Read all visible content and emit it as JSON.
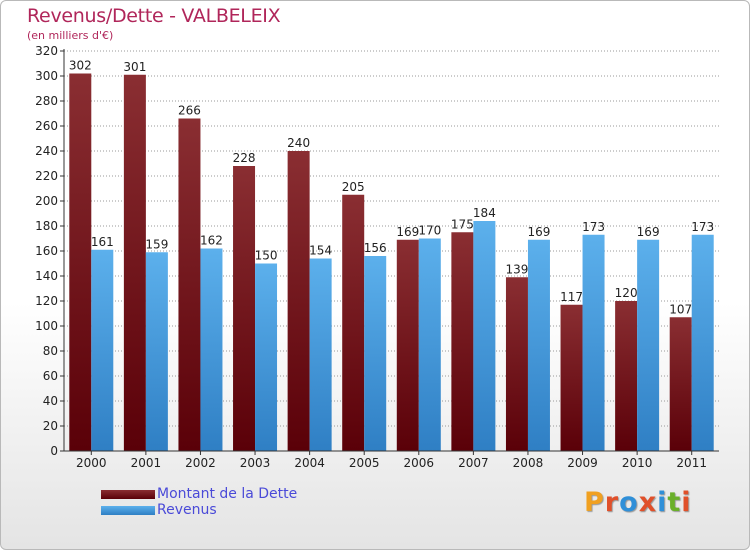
{
  "header": {
    "title": "Revenus/Dette - VALBELEIX",
    "subtitle": "(en milliers d'€)"
  },
  "legend": {
    "items": [
      {
        "label": "Montant de la Dette",
        "color": "#6b0f14"
      },
      {
        "label": "Revenus",
        "color": "#4aa3e6"
      }
    ]
  },
  "brand": {
    "text": "Proxiti",
    "letter_colors": [
      "#f0a020",
      "#e0502a",
      "#2f8fd8",
      "#e0502a",
      "#2f8fd8",
      "#6ab02a",
      "#e0502a"
    ]
  },
  "colors": {
    "dette_top": "#8a2e32",
    "dette_bottom": "#5a0008",
    "revenus_top": "#5cb0ec",
    "revenus_bottom": "#2f7fc4",
    "axis": "#333333",
    "grid": "#999999"
  },
  "chart_data": {
    "type": "bar",
    "title": "Revenus/Dette - VALBELEIX",
    "subtitle": "(en milliers d'€)",
    "categories": [
      "2000",
      "2001",
      "2002",
      "2003",
      "2004",
      "2005",
      "2006",
      "2007",
      "2008",
      "2009",
      "2010",
      "2011"
    ],
    "series": [
      {
        "name": "Montant de la Dette",
        "values": [
          302,
          301,
          266,
          228,
          240,
          205,
          169,
          175,
          139,
          117,
          120,
          107
        ]
      },
      {
        "name": "Revenus",
        "values": [
          161,
          159,
          162,
          150,
          154,
          156,
          170,
          184,
          169,
          173,
          169,
          173
        ]
      }
    ],
    "ylim": [
      0,
      320
    ],
    "yticks": [
      0,
      20,
      40,
      60,
      80,
      100,
      120,
      140,
      160,
      180,
      200,
      220,
      240,
      260,
      280,
      300,
      320
    ],
    "grid": true,
    "legend_position": "bottom-left"
  }
}
